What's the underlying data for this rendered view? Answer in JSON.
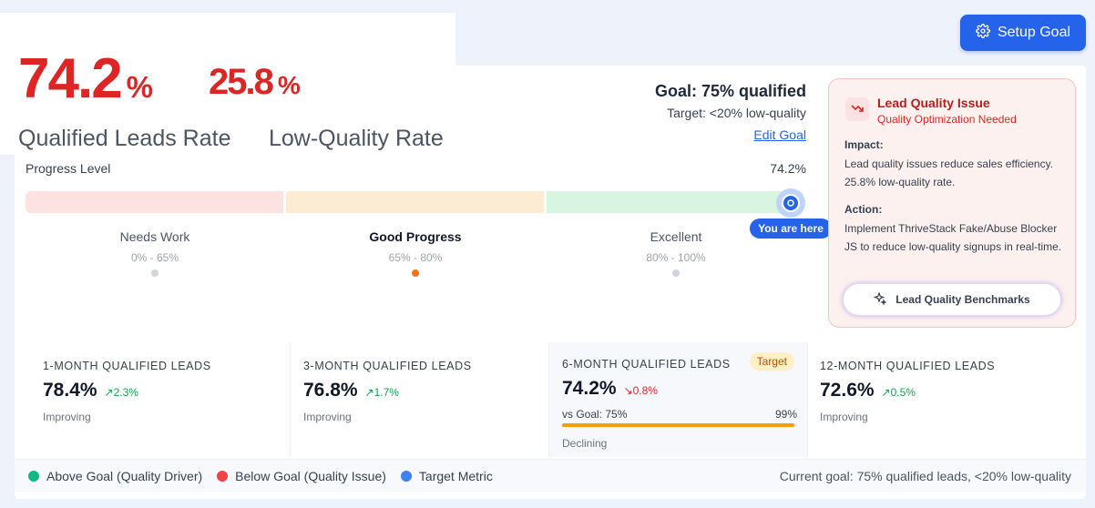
{
  "hero": {
    "qualified_value": "74.2",
    "qualified_unit": "%",
    "qualified_label": "Qualified Leads Rate",
    "low_value": "25.8",
    "low_unit": "%",
    "low_label": "Low-Quality Rate"
  },
  "setup_button": {
    "label": "Setup Goal",
    "icon": "gear-icon"
  },
  "goal": {
    "title": "Goal: 75% qualified",
    "target": "Target: <20% low-quality",
    "edit_link": "Edit Goal"
  },
  "progress": {
    "label": "Progress Level",
    "value_text": "74.2%",
    "value": 74.2,
    "marker_label": "You are here",
    "zones": [
      {
        "title": "Needs Work",
        "range": "0% - 65%",
        "active": false
      },
      {
        "title": "Good Progress",
        "range": "65% - 80%",
        "active": true
      },
      {
        "title": "Excellent",
        "range": "80% - 100%",
        "active": false
      }
    ]
  },
  "issue": {
    "title": "Lead Quality Issue",
    "subtitle": "Quality Optimization Needed",
    "impact_heading": "Impact:",
    "impact_text": "Lead quality issues reduce sales efficiency. 25.8% low-quality rate.",
    "action_heading": "Action:",
    "action_text": "Implement ThriveStack Fake/Abuse Blocker JS to reduce low-quality signups in real-time.",
    "button_label": "Lead Quality Benchmarks",
    "colors": {
      "accent": "#dc2626",
      "background": "#fdf1ef"
    }
  },
  "stats": [
    {
      "label": "1-MONTH QUALIFIED LEADS",
      "value": "78.4%",
      "change": "2.3%",
      "direction": "up",
      "note": "Improving"
    },
    {
      "label": "3-MONTH QUALIFIED LEADS",
      "value": "76.8%",
      "change": "1.7%",
      "direction": "up",
      "note": "Improving"
    },
    {
      "label": "6-MONTH QUALIFIED LEADS",
      "value": "74.2%",
      "change": "0.8%",
      "direction": "down",
      "note": "Declining",
      "badge": "Target",
      "vs_goal_label": "vs Goal: 75%",
      "vs_goal_pct": "99%",
      "vs_goal_fraction": 0.99
    },
    {
      "label": "12-MONTH QUALIFIED LEADS",
      "value": "72.6%",
      "change": "0.5%",
      "direction": "up",
      "note": "Improving"
    }
  ],
  "legend": {
    "items": [
      {
        "label": "Above Goal (Quality Driver)",
        "color": "#10b981"
      },
      {
        "label": "Below Goal (Quality Issue)",
        "color": "#ef4444"
      },
      {
        "label": "Target Metric",
        "color": "#3b82f6"
      }
    ],
    "current_goal": "Current goal: 75% qualified leads, <20% low-quality"
  }
}
